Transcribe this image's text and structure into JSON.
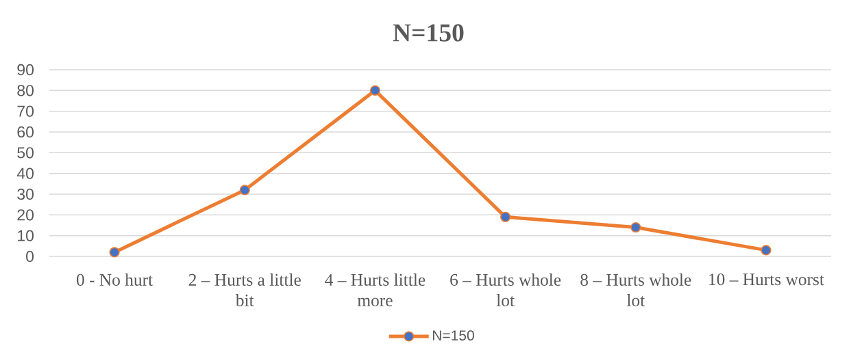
{
  "chart_data": {
    "type": "line",
    "title": "N=150",
    "categories": [
      "0 - No hurt",
      "2 – Hurts a little bit",
      "4 – Hurts little more",
      "6 – Hurts whole lot",
      "8 – Hurts whole lot",
      "10 – Hurts worst"
    ],
    "series": [
      {
        "name": "N=150",
        "color": "#ed7d31",
        "colors": [
          "#4472c4",
          "#4472c4",
          "#4472c4",
          "#4472c4",
          "#4472c4",
          "#4472c4"
        ],
        "values": [
          2,
          32,
          80,
          19,
          14,
          3
        ]
      }
    ],
    "ylim": [
      0,
      90
    ],
    "yticks": [
      0,
      10,
      20,
      30,
      40,
      50,
      60,
      70,
      80,
      90
    ],
    "grid": "y",
    "legend": "bottom",
    "marker": "circle",
    "line_style": "solid"
  }
}
